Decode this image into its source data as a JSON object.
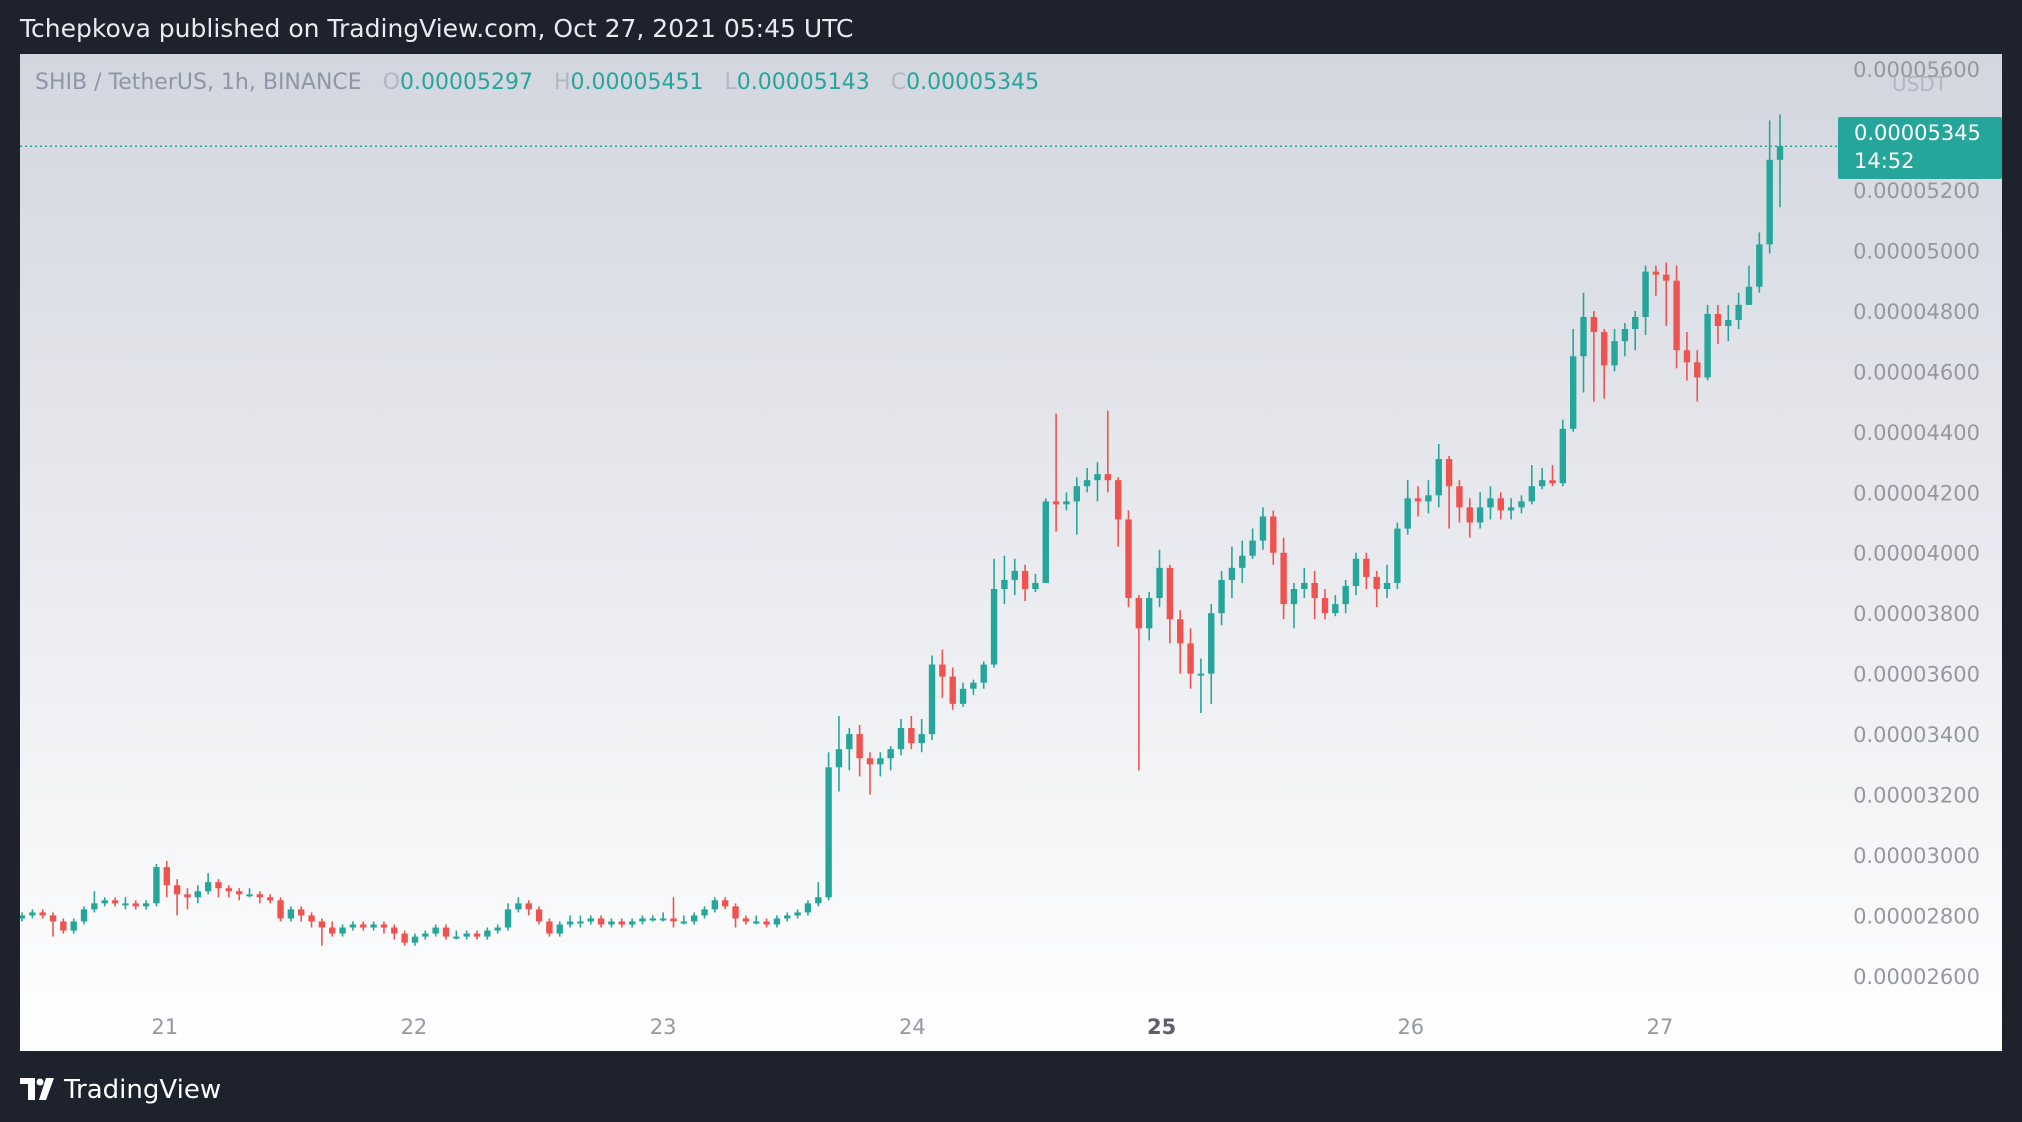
{
  "header": {
    "publisher_line": "Tchepkova published on TradingView.com, Oct 27, 2021 05:45 UTC"
  },
  "legend": {
    "symbol": "SHIB / TetherUS, 1h, BINANCE",
    "open_label": "O",
    "open": "0.00005297",
    "high_label": "H",
    "high": "0.00005451",
    "low_label": "L",
    "low": "0.00005143",
    "close_label": "C",
    "close": "0.00005345"
  },
  "price_scale": {
    "currency": "USDT",
    "last_price": "0.00005345",
    "countdown": "14:52"
  },
  "footer": {
    "brand": "TradingView"
  },
  "colors": {
    "up": "#26a69a",
    "down": "#ef5350",
    "grad_top": "#d3d6df",
    "grad_bottom": "#ffffff",
    "axis_text": "#9598a1"
  },
  "icons": {
    "logo": "tradingview-logo-icon"
  },
  "chart_data": {
    "type": "candlestick",
    "interval": "1h",
    "x_ticks": [
      "21",
      "22",
      "23",
      "24",
      "25",
      "26",
      "27"
    ],
    "bold_x_tick": "25",
    "y_ticks": [
      "0.00005600",
      "0.00005400",
      "0.00005200",
      "0.00005000",
      "0.00004800",
      "0.00004600",
      "0.00004400",
      "0.00004200",
      "0.00004000",
      "0.00003800",
      "0.00003600",
      "0.00003400",
      "0.00003200",
      "0.00003000",
      "0.00002800",
      "0.00002600"
    ],
    "ylim": [
      2.55e-05,
      5.65e-05
    ],
    "last_price_line": 5.345e-05,
    "points": [
      [
        2.79,
        2.8,
        2.81,
        2.78
      ],
      [
        2.8,
        2.81,
        2.82,
        2.79
      ],
      [
        2.81,
        2.8,
        2.82,
        2.79
      ],
      [
        2.8,
        2.78,
        2.81,
        2.73
      ],
      [
        2.78,
        2.75,
        2.79,
        2.74
      ],
      [
        2.75,
        2.78,
        2.79,
        2.74
      ],
      [
        2.78,
        2.82,
        2.83,
        2.77
      ],
      [
        2.82,
        2.84,
        2.88,
        2.81
      ],
      [
        2.84,
        2.85,
        2.86,
        2.83
      ],
      [
        2.85,
        2.84,
        2.86,
        2.83
      ],
      [
        2.84,
        2.84,
        2.86,
        2.82
      ],
      [
        2.84,
        2.83,
        2.85,
        2.82
      ],
      [
        2.83,
        2.84,
        2.85,
        2.82
      ],
      [
        2.84,
        2.96,
        2.97,
        2.83
      ],
      [
        2.96,
        2.9,
        2.98,
        2.86
      ],
      [
        2.9,
        2.87,
        2.92,
        2.8
      ],
      [
        2.87,
        2.86,
        2.89,
        2.82
      ],
      [
        2.86,
        2.88,
        2.9,
        2.84
      ],
      [
        2.88,
        2.91,
        2.94,
        2.87
      ],
      [
        2.91,
        2.89,
        2.92,
        2.86
      ],
      [
        2.89,
        2.88,
        2.9,
        2.86
      ],
      [
        2.88,
        2.87,
        2.89,
        2.85
      ],
      [
        2.87,
        2.87,
        2.89,
        2.86
      ],
      [
        2.87,
        2.86,
        2.88,
        2.84
      ],
      [
        2.86,
        2.85,
        2.87,
        2.84
      ],
      [
        2.85,
        2.79,
        2.86,
        2.78
      ],
      [
        2.79,
        2.82,
        2.83,
        2.78
      ],
      [
        2.82,
        2.8,
        2.83,
        2.78
      ],
      [
        2.8,
        2.78,
        2.81,
        2.76
      ],
      [
        2.78,
        2.76,
        2.79,
        2.7
      ],
      [
        2.76,
        2.74,
        2.78,
        2.73
      ],
      [
        2.74,
        2.76,
        2.77,
        2.73
      ],
      [
        2.76,
        2.77,
        2.78,
        2.75
      ],
      [
        2.77,
        2.76,
        2.78,
        2.75
      ],
      [
        2.76,
        2.77,
        2.78,
        2.75
      ],
      [
        2.77,
        2.76,
        2.78,
        2.74
      ],
      [
        2.76,
        2.74,
        2.77,
        2.72
      ],
      [
        2.74,
        2.71,
        2.75,
        2.7
      ],
      [
        2.71,
        2.73,
        2.74,
        2.7
      ],
      [
        2.73,
        2.74,
        2.75,
        2.72
      ],
      [
        2.74,
        2.76,
        2.77,
        2.73
      ],
      [
        2.76,
        2.73,
        2.77,
        2.72
      ],
      [
        2.73,
        2.73,
        2.75,
        2.72
      ],
      [
        2.73,
        2.74,
        2.75,
        2.72
      ],
      [
        2.74,
        2.73,
        2.75,
        2.72
      ],
      [
        2.73,
        2.75,
        2.76,
        2.72
      ],
      [
        2.75,
        2.76,
        2.77,
        2.74
      ],
      [
        2.76,
        2.82,
        2.84,
        2.75
      ],
      [
        2.82,
        2.84,
        2.86,
        2.81
      ],
      [
        2.84,
        2.82,
        2.85,
        2.8
      ],
      [
        2.82,
        2.78,
        2.83,
        2.77
      ],
      [
        2.78,
        2.74,
        2.79,
        2.73
      ],
      [
        2.74,
        2.77,
        2.78,
        2.73
      ],
      [
        2.77,
        2.78,
        2.8,
        2.76
      ],
      [
        2.78,
        2.78,
        2.8,
        2.76
      ],
      [
        2.78,
        2.79,
        2.8,
        2.77
      ],
      [
        2.79,
        2.77,
        2.8,
        2.76
      ],
      [
        2.77,
        2.78,
        2.79,
        2.76
      ],
      [
        2.78,
        2.77,
        2.79,
        2.76
      ],
      [
        2.77,
        2.78,
        2.79,
        2.76
      ],
      [
        2.78,
        2.79,
        2.8,
        2.77
      ],
      [
        2.79,
        2.79,
        2.8,
        2.78
      ],
      [
        2.79,
        2.79,
        2.81,
        2.78
      ],
      [
        2.79,
        2.78,
        2.86,
        2.76
      ],
      [
        2.78,
        2.78,
        2.8,
        2.77
      ],
      [
        2.78,
        2.8,
        2.81,
        2.77
      ],
      [
        2.8,
        2.82,
        2.83,
        2.79
      ],
      [
        2.82,
        2.85,
        2.86,
        2.81
      ],
      [
        2.85,
        2.83,
        2.86,
        2.82
      ],
      [
        2.83,
        2.79,
        2.84,
        2.76
      ],
      [
        2.79,
        2.78,
        2.8,
        2.77
      ],
      [
        2.78,
        2.78,
        2.8,
        2.77
      ],
      [
        2.78,
        2.77,
        2.79,
        2.76
      ],
      [
        2.77,
        2.79,
        2.8,
        2.76
      ],
      [
        2.79,
        2.8,
        2.81,
        2.78
      ],
      [
        2.8,
        2.81,
        2.82,
        2.79
      ],
      [
        2.81,
        2.84,
        2.85,
        2.8
      ],
      [
        2.84,
        2.86,
        2.91,
        2.83
      ],
      [
        2.86,
        3.29,
        3.34,
        2.85
      ],
      [
        3.29,
        3.35,
        3.46,
        3.21
      ],
      [
        3.35,
        3.4,
        3.42,
        3.28
      ],
      [
        3.4,
        3.32,
        3.43,
        3.26
      ],
      [
        3.32,
        3.3,
        3.34,
        3.2
      ],
      [
        3.3,
        3.32,
        3.34,
        3.26
      ],
      [
        3.32,
        3.35,
        3.36,
        3.28
      ],
      [
        3.35,
        3.42,
        3.45,
        3.33
      ],
      [
        3.42,
        3.37,
        3.46,
        3.35
      ],
      [
        3.37,
        3.4,
        3.45,
        3.34
      ],
      [
        3.4,
        3.63,
        3.66,
        3.38
      ],
      [
        3.63,
        3.59,
        3.68,
        3.52
      ],
      [
        3.59,
        3.5,
        3.62,
        3.48
      ],
      [
        3.5,
        3.55,
        3.57,
        3.49
      ],
      [
        3.55,
        3.57,
        3.58,
        3.53
      ],
      [
        3.57,
        3.63,
        3.64,
        3.55
      ],
      [
        3.63,
        3.88,
        3.98,
        3.62
      ],
      [
        3.88,
        3.91,
        3.99,
        3.83
      ],
      [
        3.91,
        3.94,
        3.98,
        3.86
      ],
      [
        3.94,
        3.88,
        3.96,
        3.84
      ],
      [
        3.88,
        3.9,
        3.93,
        3.87
      ],
      [
        3.9,
        4.17,
        4.18,
        3.9
      ],
      [
        4.17,
        4.16,
        4.46,
        4.07
      ],
      [
        4.16,
        4.17,
        4.2,
        4.14
      ],
      [
        4.17,
        4.22,
        4.25,
        4.06
      ],
      [
        4.22,
        4.24,
        4.28,
        4.2
      ],
      [
        4.24,
        4.26,
        4.3,
        4.17
      ],
      [
        4.26,
        4.24,
        4.47,
        4.2
      ],
      [
        4.24,
        4.11,
        4.25,
        4.02
      ],
      [
        4.11,
        3.85,
        4.14,
        3.82
      ],
      [
        3.85,
        3.75,
        3.86,
        3.28
      ],
      [
        3.75,
        3.85,
        3.87,
        3.71
      ],
      [
        3.85,
        3.95,
        4.01,
        3.82
      ],
      [
        3.95,
        3.78,
        3.96,
        3.7
      ],
      [
        3.78,
        3.7,
        3.81,
        3.6
      ],
      [
        3.7,
        3.6,
        3.75,
        3.55
      ],
      [
        3.6,
        3.6,
        3.65,
        3.47
      ],
      [
        3.6,
        3.8,
        3.83,
        3.5
      ],
      [
        3.8,
        3.91,
        3.94,
        3.76
      ],
      [
        3.91,
        3.95,
        4.02,
        3.85
      ],
      [
        3.95,
        3.99,
        4.04,
        3.9
      ],
      [
        3.99,
        4.04,
        4.08,
        3.98
      ],
      [
        4.04,
        4.12,
        4.15,
        4.01
      ],
      [
        4.12,
        4.0,
        4.14,
        3.96
      ],
      [
        4.0,
        3.83,
        4.05,
        3.78
      ],
      [
        3.83,
        3.88,
        3.9,
        3.75
      ],
      [
        3.88,
        3.9,
        3.95,
        3.85
      ],
      [
        3.9,
        3.85,
        3.94,
        3.78
      ],
      [
        3.85,
        3.8,
        3.88,
        3.78
      ],
      [
        3.8,
        3.83,
        3.86,
        3.79
      ],
      [
        3.83,
        3.89,
        3.91,
        3.8
      ],
      [
        3.89,
        3.98,
        4.0,
        3.86
      ],
      [
        3.98,
        3.92,
        4.0,
        3.88
      ],
      [
        3.92,
        3.88,
        3.94,
        3.82
      ],
      [
        3.88,
        3.9,
        3.96,
        3.85
      ],
      [
        3.9,
        4.08,
        4.1,
        3.88
      ],
      [
        4.08,
        4.18,
        4.24,
        4.06
      ],
      [
        4.18,
        4.17,
        4.22,
        4.12
      ],
      [
        4.17,
        4.19,
        4.24,
        4.13
      ],
      [
        4.19,
        4.31,
        4.36,
        4.15
      ],
      [
        4.31,
        4.22,
        4.32,
        4.08
      ],
      [
        4.22,
        4.15,
        4.24,
        4.1
      ],
      [
        4.15,
        4.1,
        4.18,
        4.05
      ],
      [
        4.1,
        4.15,
        4.2,
        4.08
      ],
      [
        4.15,
        4.18,
        4.22,
        4.11
      ],
      [
        4.18,
        4.14,
        4.2,
        4.11
      ],
      [
        4.14,
        4.15,
        4.18,
        4.11
      ],
      [
        4.15,
        4.17,
        4.19,
        4.13
      ],
      [
        4.17,
        4.22,
        4.29,
        4.16
      ],
      [
        4.22,
        4.24,
        4.28,
        4.21
      ],
      [
        4.24,
        4.23,
        4.29,
        4.22
      ],
      [
        4.23,
        4.41,
        4.44,
        4.22
      ],
      [
        4.41,
        4.65,
        4.74,
        4.4
      ],
      [
        4.65,
        4.78,
        4.86,
        4.53
      ],
      [
        4.78,
        4.73,
        4.8,
        4.5
      ],
      [
        4.73,
        4.62,
        4.74,
        4.51
      ],
      [
        4.62,
        4.7,
        4.74,
        4.6
      ],
      [
        4.7,
        4.74,
        4.76,
        4.65
      ],
      [
        4.74,
        4.78,
        4.8,
        4.67
      ],
      [
        4.78,
        4.93,
        4.95,
        4.72
      ],
      [
        4.93,
        4.92,
        4.95,
        4.85
      ],
      [
        4.92,
        4.9,
        4.96,
        4.75
      ],
      [
        4.9,
        4.67,
        4.95,
        4.61
      ],
      [
        4.67,
        4.63,
        4.73,
        4.57
      ],
      [
        4.63,
        4.58,
        4.67,
        4.5
      ],
      [
        4.58,
        4.79,
        4.82,
        4.57
      ],
      [
        4.79,
        4.75,
        4.82,
        4.69
      ],
      [
        4.75,
        4.77,
        4.82,
        4.7
      ],
      [
        4.77,
        4.82,
        4.86,
        4.74
      ],
      [
        4.82,
        4.88,
        4.95,
        4.82
      ],
      [
        4.88,
        5.02,
        5.06,
        4.86
      ],
      [
        5.02,
        5.3,
        5.43,
        4.99
      ],
      [
        5.3,
        5.345,
        5.45,
        5.143
      ]
    ]
  }
}
